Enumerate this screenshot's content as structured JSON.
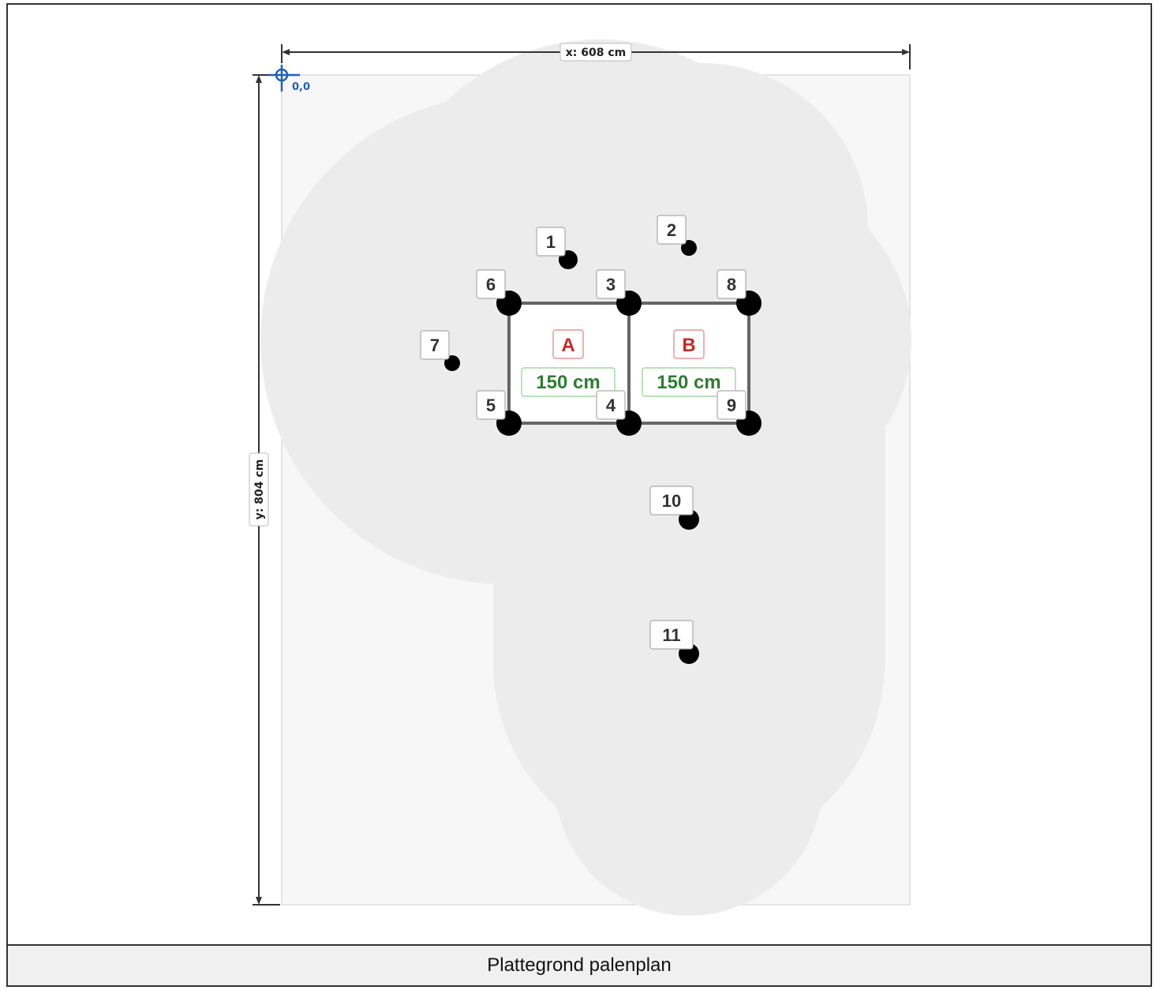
{
  "drawing": {
    "width_label": "x: 608 cm",
    "height_label": "y: 804 cm",
    "origin_label": "0,0",
    "caption": "Plattegrond palenplan"
  },
  "areas": [
    {
      "letter": "A",
      "size": "150 cm"
    },
    {
      "letter": "B",
      "size": "150 cm"
    }
  ],
  "poles": [
    {
      "label": "1"
    },
    {
      "label": "2"
    },
    {
      "label": "3"
    },
    {
      "label": "4"
    },
    {
      "label": "5"
    },
    {
      "label": "6"
    },
    {
      "label": "7"
    },
    {
      "label": "8"
    },
    {
      "label": "9"
    },
    {
      "label": "10"
    },
    {
      "label": "11"
    }
  ],
  "colors": {
    "canopy": "#ececec",
    "plot": "#f7f7f7",
    "pole": "#000000",
    "area_border": "#666666",
    "letter": "#c62828",
    "size": "#2e7d32",
    "origin": "#1f5fbf"
  }
}
